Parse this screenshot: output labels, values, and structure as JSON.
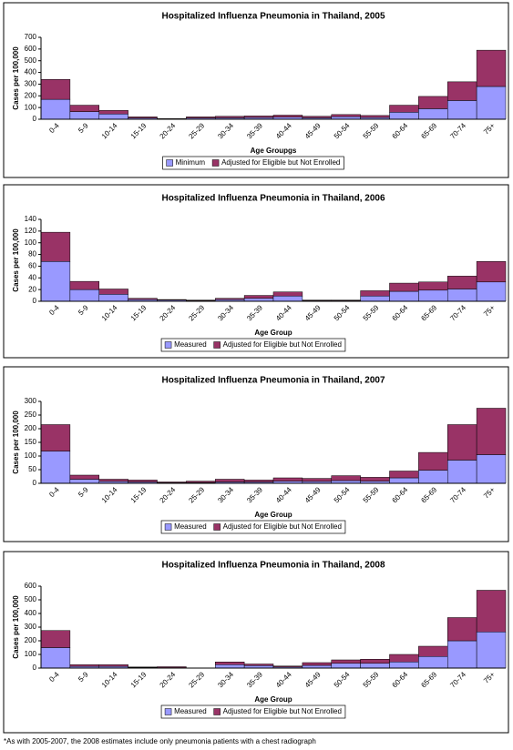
{
  "chart_data": [
    {
      "type": "bar",
      "stacked": true,
      "title": "Hospitalized Influenza Pneumonia in Thailand, 2005",
      "x_label": "Age Groupgs",
      "y_label": "Cases per 100,000",
      "categories": [
        "0-4",
        "5-9",
        "10-14",
        "15-19",
        "20-24",
        "25-29",
        "30-34",
        "35-39",
        "40-44",
        "45-49",
        "50-54",
        "55-59",
        "60-64",
        "65-69",
        "70-74",
        "75+"
      ],
      "series": [
        {
          "name": "Minimum",
          "color": "#9999ff",
          "values": [
            170,
            65,
            45,
            10,
            3,
            10,
            12,
            15,
            18,
            12,
            22,
            15,
            60,
            90,
            160,
            280
          ]
        },
        {
          "name": "Adjusted for Eligible but Not Enrolled",
          "color": "#993366",
          "values": [
            170,
            55,
            30,
            10,
            2,
            10,
            13,
            13,
            17,
            13,
            18,
            17,
            60,
            105,
            160,
            310
          ]
        }
      ],
      "ylim": [
        0,
        700
      ],
      "yticks": [
        0,
        100,
        200,
        300,
        400,
        500,
        600,
        700
      ]
    },
    {
      "type": "bar",
      "stacked": true,
      "title": "Hospitalized Influenza Pneumonia in Thailand, 2006",
      "x_label": "Age Group",
      "y_label": "Cases per 100,000",
      "categories": [
        "0-4",
        "5-9",
        "10-14",
        "15-19",
        "20-24",
        "25-29",
        "30-34",
        "35-39",
        "40-44",
        "45-49",
        "50-54",
        "55-59",
        "60-64",
        "65-69",
        "70-74",
        "75+"
      ],
      "series": [
        {
          "name": "Measured",
          "color": "#9999ff",
          "values": [
            68,
            20,
            12,
            3,
            2,
            1,
            3,
            5,
            9,
            1,
            1,
            9,
            17,
            19,
            21,
            33
          ]
        },
        {
          "name": "Adjusted for Eligible but Not Enrolled",
          "color": "#993366",
          "values": [
            50,
            14,
            9,
            2,
            1,
            1,
            2,
            5,
            7,
            1,
            1,
            9,
            14,
            14,
            22,
            35
          ]
        }
      ],
      "ylim": [
        0,
        140
      ],
      "yticks": [
        0,
        20,
        40,
        60,
        80,
        100,
        120,
        140
      ]
    },
    {
      "type": "bar",
      "stacked": true,
      "title": "Hospitalized Influenza Pneumonia in Thailand, 2007",
      "x_label": "Age Group",
      "y_label": "Cases per 100,000",
      "categories": [
        "0-4",
        "5-9",
        "10-14",
        "15-19",
        "20-24",
        "25-29",
        "30-34",
        "35-39",
        "40-44",
        "45-49",
        "50-54",
        "55-59",
        "60-64",
        "65-69",
        "70-74",
        "75+"
      ],
      "series": [
        {
          "name": "Measured",
          "color": "#9999ff",
          "values": [
            118,
            15,
            7,
            5,
            2,
            3,
            5,
            5,
            8,
            7,
            10,
            8,
            20,
            48,
            85,
            105
          ]
        },
        {
          "name": "Adjusted for Eligible but Not Enrolled",
          "color": "#993366",
          "values": [
            97,
            15,
            8,
            7,
            3,
            5,
            10,
            7,
            12,
            11,
            18,
            14,
            25,
            65,
            130,
            170
          ]
        }
      ],
      "ylim": [
        0,
        300
      ],
      "yticks": [
        0,
        50,
        100,
        150,
        200,
        250,
        300
      ]
    },
    {
      "type": "bar",
      "stacked": true,
      "title": "Hospitalized Influenza Pneumonia in Thailand, 2008",
      "x_label": "Age Group",
      "y_label": "Cases per 100,000",
      "categories": [
        "0-4",
        "5-9",
        "10-14",
        "15-19",
        "20-24",
        "25-29",
        "30-34",
        "35-39",
        "40-44",
        "45-49",
        "50-54",
        "55-59",
        "60-64",
        "65-69",
        "70-74",
        "75+"
      ],
      "series": [
        {
          "name": "Measured",
          "color": "#9999ff",
          "values": [
            150,
            12,
            12,
            5,
            3,
            0,
            25,
            18,
            8,
            20,
            35,
            35,
            45,
            85,
            200,
            265
          ]
        },
        {
          "name": "Adjusted for Eligible but Not Enrolled",
          "color": "#993366",
          "values": [
            125,
            13,
            13,
            3,
            7,
            0,
            20,
            12,
            7,
            20,
            25,
            30,
            55,
            75,
            170,
            305
          ]
        }
      ],
      "ylim": [
        0,
        600
      ],
      "yticks": [
        0,
        100,
        200,
        300,
        400,
        500,
        600
      ]
    }
  ],
  "footnote": "*As with 2005-2007, the 2008 estimates include only pneumonia patients with a chest radiograph"
}
